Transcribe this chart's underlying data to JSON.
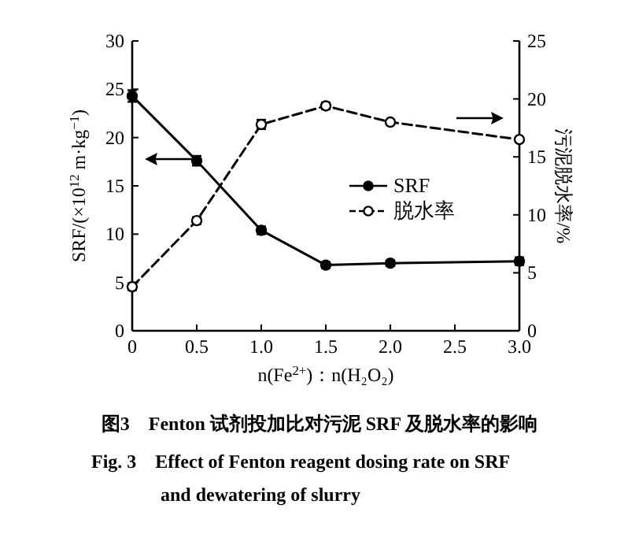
{
  "chart_data": {
    "type": "line",
    "title": "图3　Fenton 试剂投加比对污泥 SRF 及脱水率的影响",
    "subtitle": "Fig. 3　Effect of Fenton reagent dosing rate on SRF and dewatering of slurry",
    "xlabel": "n(Fe$^{2+}$)：n(H₂O₂)",
    "ylabel": "SRF/(×10$^{12}$ m·kg$^{−1}$)",
    "y2label": "污泥脱水率/%",
    "x": [
      0,
      0.5,
      1.0,
      1.5,
      2.0,
      3.0
    ],
    "xlim": [
      0,
      3
    ],
    "xticks": [
      {
        "value": 0,
        "label": "0"
      },
      {
        "value": 0.5,
        "label": "0.5"
      },
      {
        "value": 1,
        "label": "1.0"
      },
      {
        "value": 1.5,
        "label": "1.5"
      },
      {
        "value": 2,
        "label": "2.0"
      },
      {
        "value": 2.5,
        "label": "2.5"
      },
      {
        "value": 3,
        "label": "3.0"
      }
    ],
    "ylim": [
      0,
      30
    ],
    "yticks": [
      0,
      5,
      10,
      15,
      20,
      25,
      30
    ],
    "y2lim": [
      0,
      25
    ],
    "y2ticks": [
      0,
      5,
      10,
      15,
      20,
      25
    ],
    "series": [
      {
        "name": "SRF",
        "color": "#000000",
        "values": [
          24.3,
          17.6,
          10.4,
          6.8,
          7.0,
          7.2
        ],
        "errors": [
          0.6,
          0.5,
          0.4,
          0.3,
          0.3,
          0.4
        ],
        "line_style": "solid",
        "marker": "circle"
      },
      {
        "name": "脱水率",
        "color": "#000000",
        "values": [
          3.8,
          9.5,
          17.8,
          19.4,
          18.0,
          16.5
        ],
        "errors": [
          0.3,
          0.3,
          0.4,
          0.3,
          0.2,
          0.2
        ],
        "line_style": "dashed",
        "marker": "circle",
        "axis": "y2"
      }
    ],
    "legend": "right",
    "grid": false
  }
}
